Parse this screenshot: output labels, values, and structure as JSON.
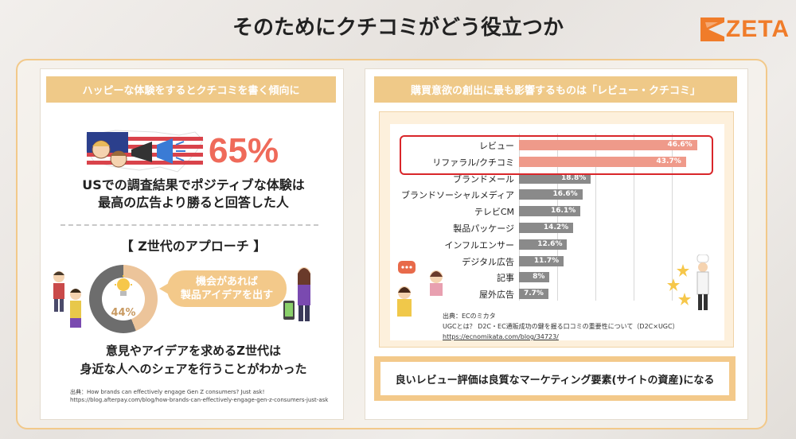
{
  "slide": {
    "title": "そのためにクチコミがどう役立つか",
    "logo_text": "ZETA",
    "accent_color": "#f07c2a"
  },
  "left": {
    "header": "ハッピーな体験をするとクチコミを書く傾向に",
    "stat_pct": "65%",
    "claim_line1": "USでの調査結果でポジティブな体験は",
    "claim_line2": "最高の広告より勝ると回答した人",
    "genz_title": "【 Z世代のアプローチ 】",
    "donut_pct": "44%",
    "donut_value": 0.44,
    "bubble_line1": "機会があれば",
    "bubble_line2": "製品アイデアを出す",
    "conclusion_line1": "意見やアイデアを求めるZ世代は",
    "conclusion_line2": "身近な人へのシェアを行うことがわかった",
    "source_line1": "出典：How brands can effectively engage Gen Z consumers? Just ask!",
    "source_line2": "https://blog.afterpay.com/blog/how-brands-can-effectively-engage-gen-z-consumers-just-ask"
  },
  "right": {
    "header": "購買意欲の創出に最も影響するものは「レビュー・クチコミ」",
    "source_line1": "出典：ECのミカタ",
    "source_line2": "UGCとは？ D2C・EC通販成功の鍵を握る口コミの重要性について（D2C×UGC）",
    "source_line3": "https://ecnomikata.com/blog/34723/",
    "conclusion": "良いレビュー評価は良質なマーケティング要素(サイトの資産)になる"
  },
  "chart_data": {
    "type": "bar",
    "orientation": "horizontal",
    "categories": [
      "レビュー",
      "リファラル/クチコミ",
      "ブランドメール",
      "ブランドソーシャルメディア",
      "テレビCM",
      "製品パッケージ",
      "インフルエンサー",
      "デジタル広告",
      "記事",
      "屋外広告"
    ],
    "values": [
      46.6,
      43.7,
      18.8,
      16.6,
      16.1,
      14.2,
      12.6,
      11.7,
      8,
      7.7
    ],
    "value_labels": [
      "46.6%",
      "43.7%",
      "18.8%",
      "16.6%",
      "16.1%",
      "14.2%",
      "12.6%",
      "11.7%",
      "8%",
      "7.7%"
    ],
    "highlighted": [
      "レビュー",
      "リファラル/クチコミ"
    ],
    "colors": {
      "highlight": "#ef9a8a",
      "normal": "#8a8a8a"
    },
    "xlim": [
      0,
      50
    ],
    "grid": true
  }
}
